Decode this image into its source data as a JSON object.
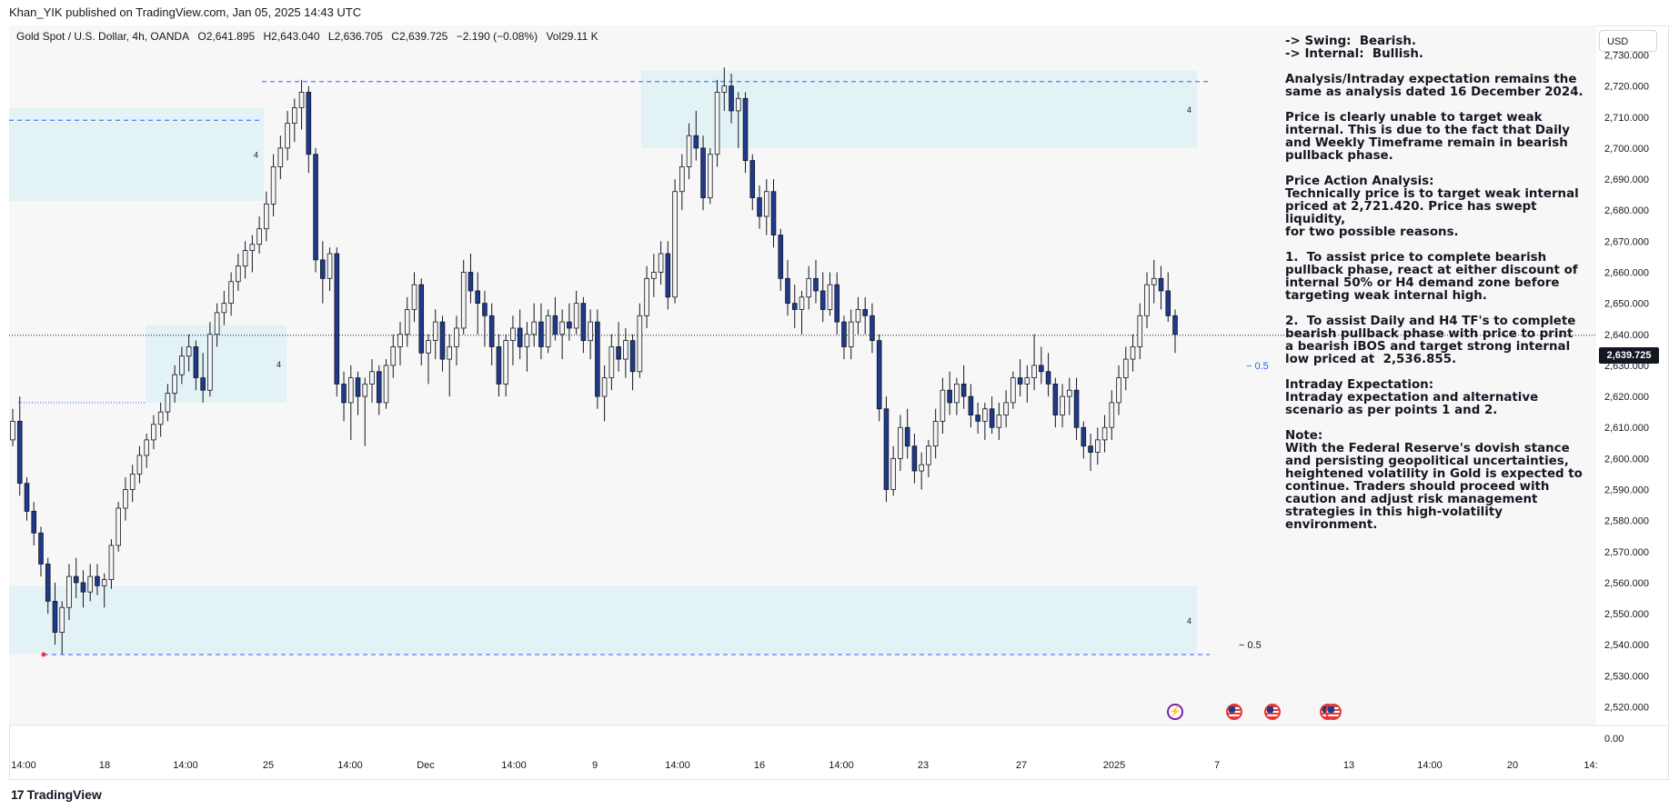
{
  "publish_bar": "Khan_YIK published on TradingView.com, Jan 05, 2025 14:43 UTC",
  "header": {
    "symbol": "Gold Spot / U.S. Dollar, 4h, OANDA",
    "open": "O2,641.895",
    "high": "H2,643.040",
    "low": "L2,636.705",
    "close": "C2,639.725",
    "change": "−2.190 (−0.08%)",
    "volume": "Vol29.11 K"
  },
  "currency_button": "USD",
  "current_price_tag": "2,639.725",
  "analysis_text": "-> Swing:  Bearish.\n-> Internal:  Bullish.\n\nAnalysis/Intraday expectation remains the same as analysis dated 16 December 2024.\n\nPrice is clearly unable to target weak internal. This is due to the fact that Daily and Weekly Timeframe remain in bearish pullback phase.\n\nPrice Action Analysis:\nTechnically price is to target weak internal priced at 2,721.420. Price has swept liquidity,\nfor two possible reasons.\n\n1.  To assist price to complete bearish pullback phase, react at either discount of internal 50% or H4 demand zone before targeting weak internal high.\n\n2.  To assist Daily and H4 TF's to complete bearish pullback phase with price to print a bearish iBOS and target strong internal low priced at  2,536.855.\n\nIntraday Expectation:\nIntraday expectation and alternative scenario as per points 1 and 2.\n\nNote:\nWith the Federal Reserve's dovish stance and persisting geopolitical uncertainties, heightened volatility in Gold is expected to continue. Traders should proceed with caution and adjust risk management strategies in this high-volatility environment.",
  "brand": "TradingView",
  "colors": {
    "up_fill": "#f5f5f5",
    "down_fill": "#1e3a8a",
    "wick": "#131722",
    "zone": "#e3f2f4",
    "dashed": "#2962ff",
    "price_line": "#131722"
  },
  "chart_data": {
    "type": "candlestick",
    "timeframe": "4h",
    "y_axis": {
      "ticks": [
        "2,730.000",
        "2,720.000",
        "2,710.000",
        "2,700.000",
        "2,690.000",
        "2,680.000",
        "2,670.000",
        "2,660.000",
        "2,650.000",
        "2,640.000",
        "2,630.000",
        "2,620.000",
        "2,610.000",
        "2,600.000",
        "2,590.000",
        "2,580.000",
        "2,570.000",
        "2,560.000",
        "2,550.000",
        "2,540.000",
        "2,530.000",
        "2,520.000"
      ],
      "min": 2514,
      "max": 2736,
      "bottom_pane_label": "0.00"
    },
    "x_axis": {
      "ticks": [
        "14:00",
        "18",
        "14:00",
        "25",
        "14:00",
        "Dec",
        "14:00",
        "9",
        "14:00",
        "16",
        "14:00",
        "23",
        "27",
        "2025",
        "7",
        "13",
        "14:00",
        "20",
        "14:"
      ]
    },
    "key_prices": {
      "weak_internal_high": 2721.42,
      "strong_internal_low": 2536.855,
      "last": 2639.725
    },
    "candles": [
      [
        2606,
        2616,
        2604,
        2612
      ],
      [
        2612,
        2620,
        2588,
        2592
      ],
      [
        2592,
        2594,
        2580,
        2583
      ],
      [
        2583,
        2586,
        2572,
        2576
      ],
      [
        2576,
        2578,
        2562,
        2566
      ],
      [
        2566,
        2568,
        2550,
        2554
      ],
      [
        2554,
        2560,
        2540,
        2544
      ],
      [
        2544,
        2554,
        2537,
        2552
      ],
      [
        2552,
        2566,
        2548,
        2562
      ],
      [
        2562,
        2568,
        2555,
        2560
      ],
      [
        2560,
        2564,
        2552,
        2557
      ],
      [
        2557,
        2566,
        2554,
        2562
      ],
      [
        2562,
        2566,
        2556,
        2559
      ],
      [
        2559,
        2563,
        2552,
        2561
      ],
      [
        2561,
        2574,
        2558,
        2572
      ],
      [
        2572,
        2586,
        2570,
        2584
      ],
      [
        2584,
        2594,
        2580,
        2590
      ],
      [
        2590,
        2598,
        2586,
        2595
      ],
      [
        2595,
        2604,
        2592,
        2601
      ],
      [
        2601,
        2608,
        2597,
        2606
      ],
      [
        2606,
        2614,
        2603,
        2611
      ],
      [
        2611,
        2618,
        2607,
        2615
      ],
      [
        2615,
        2624,
        2612,
        2621
      ],
      [
        2621,
        2630,
        2618,
        2627
      ],
      [
        2627,
        2636,
        2624,
        2633
      ],
      [
        2633,
        2640,
        2628,
        2636
      ],
      [
        2636,
        2638,
        2622,
        2626
      ],
      [
        2626,
        2634,
        2618,
        2622
      ],
      [
        2622,
        2644,
        2620,
        2640
      ],
      [
        2640,
        2650,
        2636,
        2647
      ],
      [
        2647,
        2654,
        2643,
        2650
      ],
      [
        2650,
        2660,
        2646,
        2657
      ],
      [
        2657,
        2666,
        2654,
        2662
      ],
      [
        2662,
        2670,
        2658,
        2667
      ],
      [
        2667,
        2672,
        2660,
        2669
      ],
      [
        2669,
        2678,
        2666,
        2674
      ],
      [
        2674,
        2686,
        2670,
        2682
      ],
      [
        2682,
        2698,
        2678,
        2694
      ],
      [
        2694,
        2704,
        2690,
        2700
      ],
      [
        2700,
        2712,
        2696,
        2708
      ],
      [
        2708,
        2716,
        2702,
        2713
      ],
      [
        2713,
        2722,
        2706,
        2718
      ],
      [
        2718,
        2720,
        2692,
        2698
      ],
      [
        2698,
        2700,
        2660,
        2664
      ],
      [
        2664,
        2670,
        2650,
        2658
      ],
      [
        2658,
        2668,
        2654,
        2666
      ],
      [
        2666,
        2668,
        2620,
        2624
      ],
      [
        2624,
        2628,
        2612,
        2618
      ],
      [
        2618,
        2630,
        2606,
        2626
      ],
      [
        2626,
        2628,
        2614,
        2620
      ],
      [
        2620,
        2626,
        2604,
        2624
      ],
      [
        2624,
        2632,
        2618,
        2628
      ],
      [
        2628,
        2630,
        2614,
        2618
      ],
      [
        2618,
        2632,
        2616,
        2630
      ],
      [
        2630,
        2640,
        2626,
        2636
      ],
      [
        2636,
        2644,
        2630,
        2640
      ],
      [
        2640,
        2652,
        2636,
        2648
      ],
      [
        2648,
        2660,
        2644,
        2656
      ],
      [
        2656,
        2658,
        2630,
        2634
      ],
      [
        2634,
        2640,
        2624,
        2638
      ],
      [
        2638,
        2648,
        2632,
        2644
      ],
      [
        2644,
        2646,
        2628,
        2632
      ],
      [
        2632,
        2640,
        2620,
        2636
      ],
      [
        2636,
        2646,
        2630,
        2642
      ],
      [
        2642,
        2664,
        2640,
        2660
      ],
      [
        2660,
        2666,
        2650,
        2654
      ],
      [
        2654,
        2660,
        2640,
        2650
      ],
      [
        2650,
        2654,
        2636,
        2646
      ],
      [
        2646,
        2650,
        2630,
        2636
      ],
      [
        2636,
        2640,
        2620,
        2624
      ],
      [
        2624,
        2640,
        2620,
        2638
      ],
      [
        2638,
        2646,
        2630,
        2642
      ],
      [
        2642,
        2648,
        2632,
        2636
      ],
      [
        2636,
        2644,
        2628,
        2640
      ],
      [
        2640,
        2650,
        2636,
        2644
      ],
      [
        2644,
        2650,
        2632,
        2636
      ],
      [
        2636,
        2648,
        2634,
        2646
      ],
      [
        2646,
        2652,
        2638,
        2640
      ],
      [
        2640,
        2648,
        2632,
        2644
      ],
      [
        2644,
        2650,
        2638,
        2642
      ],
      [
        2642,
        2654,
        2640,
        2650
      ],
      [
        2650,
        2652,
        2634,
        2638
      ],
      [
        2638,
        2648,
        2632,
        2644
      ],
      [
        2644,
        2648,
        2616,
        2620
      ],
      [
        2620,
        2630,
        2612,
        2626
      ],
      [
        2626,
        2640,
        2622,
        2636
      ],
      [
        2636,
        2644,
        2628,
        2632
      ],
      [
        2632,
        2642,
        2626,
        2638
      ],
      [
        2638,
        2640,
        2622,
        2628
      ],
      [
        2628,
        2650,
        2626,
        2646
      ],
      [
        2646,
        2662,
        2642,
        2658
      ],
      [
        2658,
        2666,
        2652,
        2660
      ],
      [
        2660,
        2670,
        2656,
        2666
      ],
      [
        2666,
        2670,
        2648,
        2652
      ],
      [
        2652,
        2690,
        2650,
        2686
      ],
      [
        2686,
        2698,
        2680,
        2694
      ],
      [
        2694,
        2708,
        2690,
        2704
      ],
      [
        2704,
        2712,
        2696,
        2700
      ],
      [
        2700,
        2704,
        2680,
        2684
      ],
      [
        2684,
        2700,
        2682,
        2698
      ],
      [
        2698,
        2722,
        2694,
        2718
      ],
      [
        2718,
        2726,
        2712,
        2720
      ],
      [
        2720,
        2724,
        2708,
        2712
      ],
      [
        2712,
        2718,
        2700,
        2716
      ],
      [
        2716,
        2718,
        2692,
        2696
      ],
      [
        2696,
        2698,
        2680,
        2684
      ],
      [
        2684,
        2688,
        2674,
        2678
      ],
      [
        2678,
        2690,
        2672,
        2686
      ],
      [
        2686,
        2690,
        2668,
        2672
      ],
      [
        2672,
        2674,
        2654,
        2658
      ],
      [
        2658,
        2664,
        2646,
        2650
      ],
      [
        2650,
        2656,
        2642,
        2648
      ],
      [
        2648,
        2654,
        2640,
        2652
      ],
      [
        2652,
        2662,
        2648,
        2658
      ],
      [
        2658,
        2664,
        2650,
        2654
      ],
      [
        2654,
        2660,
        2644,
        2648
      ],
      [
        2648,
        2660,
        2646,
        2656
      ],
      [
        2656,
        2660,
        2640,
        2644
      ],
      [
        2644,
        2646,
        2632,
        2636
      ],
      [
        2636,
        2648,
        2632,
        2644
      ],
      [
        2644,
        2652,
        2640,
        2648
      ],
      [
        2648,
        2652,
        2640,
        2646
      ],
      [
        2646,
        2650,
        2634,
        2638
      ],
      [
        2638,
        2640,
        2612,
        2616
      ],
      [
        2616,
        2620,
        2586,
        2590
      ],
      [
        2590,
        2604,
        2588,
        2600
      ],
      [
        2600,
        2614,
        2596,
        2610
      ],
      [
        2610,
        2616,
        2600,
        2604
      ],
      [
        2604,
        2608,
        2592,
        2596
      ],
      [
        2596,
        2602,
        2590,
        2598
      ],
      [
        2598,
        2606,
        2594,
        2604
      ],
      [
        2604,
        2616,
        2600,
        2612
      ],
      [
        2612,
        2626,
        2608,
        2622
      ],
      [
        2622,
        2628,
        2614,
        2618
      ],
      [
        2618,
        2626,
        2614,
        2624
      ],
      [
        2624,
        2630,
        2616,
        2620
      ],
      [
        2620,
        2624,
        2610,
        2614
      ],
      [
        2614,
        2618,
        2608,
        2612
      ],
      [
        2612,
        2618,
        2606,
        2616
      ],
      [
        2616,
        2620,
        2608,
        2610
      ],
      [
        2610,
        2618,
        2606,
        2614
      ],
      [
        2614,
        2622,
        2610,
        2618
      ],
      [
        2618,
        2628,
        2616,
        2626
      ],
      [
        2626,
        2632,
        2620,
        2624
      ],
      [
        2624,
        2630,
        2618,
        2626
      ],
      [
        2626,
        2640,
        2622,
        2630
      ],
      [
        2630,
        2636,
        2624,
        2628
      ],
      [
        2628,
        2634,
        2620,
        2624
      ],
      [
        2624,
        2626,
        2610,
        2614
      ],
      [
        2614,
        2624,
        2610,
        2620
      ],
      [
        2620,
        2626,
        2614,
        2622
      ],
      [
        2622,
        2626,
        2606,
        2610
      ],
      [
        2610,
        2612,
        2600,
        2604
      ],
      [
        2604,
        2608,
        2596,
        2602
      ],
      [
        2602,
        2610,
        2598,
        2606
      ],
      [
        2606,
        2614,
        2602,
        2610
      ],
      [
        2610,
        2622,
        2606,
        2618
      ],
      [
        2618,
        2630,
        2614,
        2626
      ],
      [
        2626,
        2636,
        2622,
        2632
      ],
      [
        2632,
        2640,
        2628,
        2636
      ],
      [
        2636,
        2650,
        2632,
        2646
      ],
      [
        2646,
        2660,
        2642,
        2656
      ],
      [
        2656,
        2664,
        2650,
        2658
      ],
      [
        2658,
        2662,
        2648,
        2654
      ],
      [
        2654,
        2660,
        2644,
        2646
      ],
      [
        2646,
        2648,
        2634,
        2640
      ]
    ],
    "zones": [
      {
        "top": 2725,
        "bottom": 2700,
        "label": "4"
      },
      {
        "top": 2713,
        "bottom": 2683,
        "label": "4"
      },
      {
        "top": 2643,
        "bottom": 2618,
        "label": "4"
      },
      {
        "top": 2559,
        "bottom": 2537,
        "label": "4"
      }
    ],
    "levels": [
      {
        "price": 2721.42,
        "style": "dashed"
      },
      {
        "price": 2709,
        "style": "dashed"
      },
      {
        "price": 2618,
        "style": "dotted"
      },
      {
        "price": 2536.855,
        "style": "dashed"
      }
    ],
    "fib_labels": [
      {
        "price": 2630,
        "text": "0.5"
      },
      {
        "price": 2540,
        "text": "0.5"
      }
    ]
  }
}
